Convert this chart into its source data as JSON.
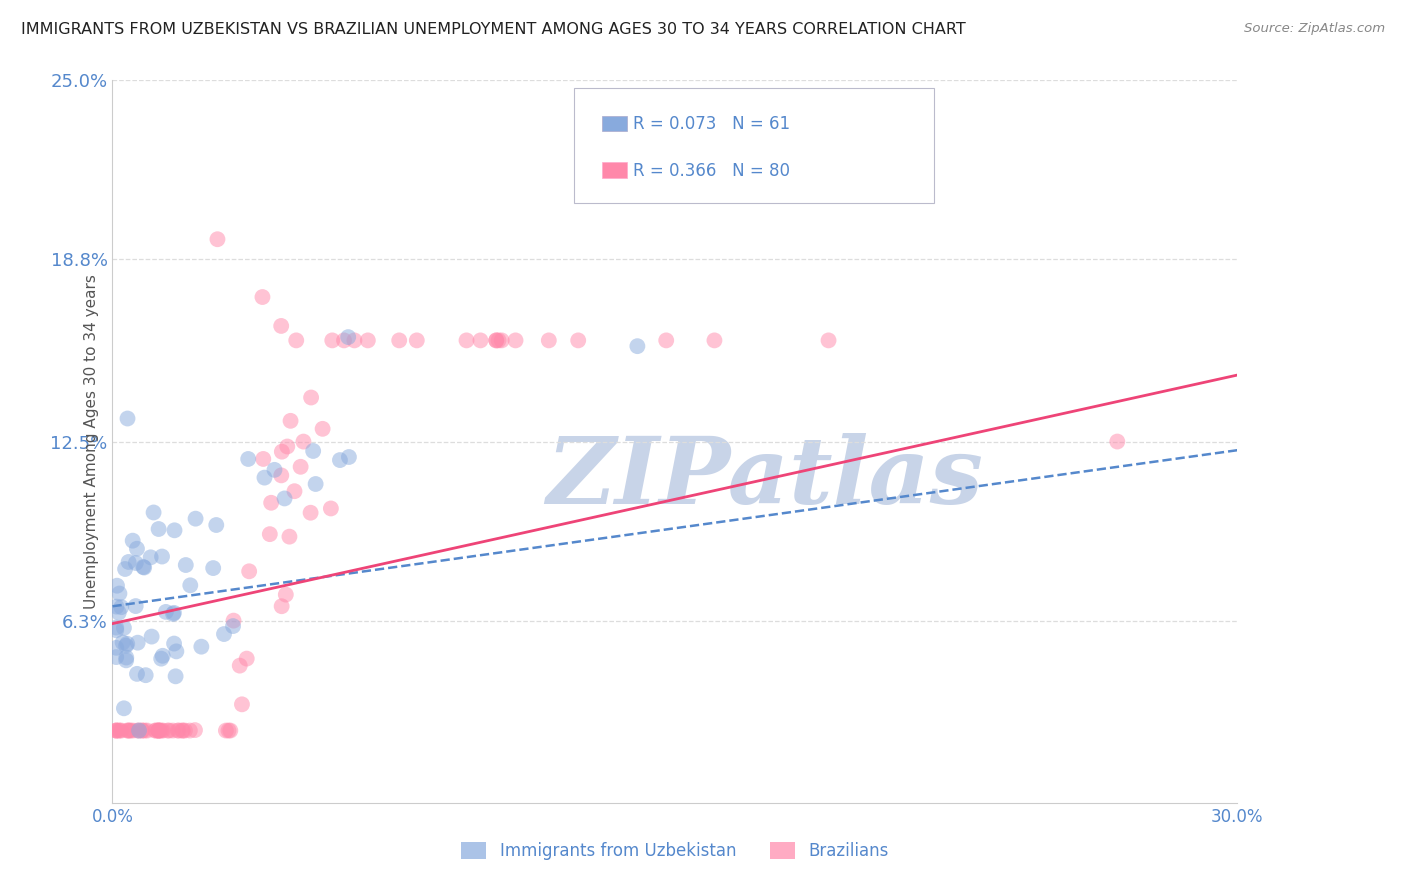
{
  "title": "IMMIGRANTS FROM UZBEKISTAN VS BRAZILIAN UNEMPLOYMENT AMONG AGES 30 TO 34 YEARS CORRELATION CHART",
  "source": "Source: ZipAtlas.com",
  "ylabel": "Unemployment Among Ages 30 to 34 years",
  "xlim": [
    0.0,
    0.3
  ],
  "ylim": [
    0.0,
    0.25
  ],
  "yticks": [
    0.063,
    0.125,
    0.188,
    0.25
  ],
  "ytick_labels": [
    "6.3%",
    "12.5%",
    "18.8%",
    "25.0%"
  ],
  "xticks": [
    0.0,
    0.3
  ],
  "xtick_labels": [
    "0.0%",
    "30.0%"
  ],
  "series1_label": "Immigrants from Uzbekistan",
  "series2_label": "Brazilians",
  "series1_R": 0.073,
  "series1_N": 61,
  "series2_R": 0.366,
  "series2_N": 80,
  "scatter1_color": "#88aadd",
  "scatter2_color": "#ff88aa",
  "line1_color": "#5588cc",
  "line2_color": "#ee4477",
  "watermark_color": "#c8d4e8",
  "background_color": "#ffffff",
  "title_color": "#222222",
  "right_label_color": "#5588cc",
  "seed": 42,
  "line1_x_start": 0.0,
  "line1_x_end": 0.3,
  "line1_y_start": 0.068,
  "line1_y_end": 0.122,
  "line2_x_start": 0.0,
  "line2_x_end": 0.3,
  "line2_y_start": 0.062,
  "line2_y_end": 0.148
}
